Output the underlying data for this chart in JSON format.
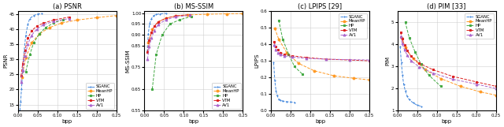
{
  "title_a": "(a) PSNR",
  "title_b": "(b) MS-SSIM",
  "title_c": "(c) LPIPS [29]",
  "title_d": "(d) PIM [33]",
  "xlabel": "bpp",
  "ylabel_a": "PSNR",
  "ylabel_b": "MS-SSIM",
  "ylabel_c": "LPIPS",
  "ylabel_d": "PIM",
  "legend_entries": [
    "SGANC",
    "MeanHP",
    "HP",
    "VTM",
    "AV1"
  ],
  "colors": {
    "SGANC": "#4488dd",
    "MeanHP": "#ff9922",
    "HP": "#44aa44",
    "VTM": "#dd2222",
    "AV1": "#aa66cc"
  },
  "psnr": {
    "SGANC": {
      "bpp": [
        0.005,
        0.007,
        0.009,
        0.012,
        0.016,
        0.02,
        0.025,
        0.03,
        0.04,
        0.05,
        0.06
      ],
      "val": [
        13.0,
        16.0,
        20.0,
        26.0,
        33.0,
        38.0,
        41.5,
        43.5,
        44.5,
        45.0,
        45.2
      ]
    },
    "MeanHP": {
      "bpp": [
        0.01,
        0.02,
        0.035,
        0.055,
        0.08,
        0.11,
        0.15,
        0.2,
        0.25
      ],
      "val": [
        24.0,
        30.5,
        35.5,
        38.5,
        40.5,
        42.0,
        43.0,
        43.8,
        44.5
      ]
    },
    "HP": {
      "bpp": [
        0.02,
        0.03,
        0.04,
        0.055,
        0.07,
        0.09,
        0.115
      ],
      "val": [
        26.0,
        31.5,
        35.5,
        38.5,
        40.5,
        42.0,
        43.2
      ]
    },
    "VTM": {
      "bpp": [
        0.008,
        0.012,
        0.018,
        0.025,
        0.035,
        0.048,
        0.065,
        0.09,
        0.13
      ],
      "val": [
        24.5,
        28.5,
        33.0,
        37.0,
        39.5,
        41.0,
        42.0,
        43.0,
        44.0
      ]
    },
    "AV1": {
      "bpp": [
        0.008,
        0.012,
        0.018,
        0.025,
        0.035,
        0.048,
        0.065,
        0.09,
        0.13
      ],
      "val": [
        22.5,
        26.5,
        31.0,
        35.0,
        38.0,
        40.0,
        41.5,
        42.5,
        43.5
      ]
    }
  },
  "msssim": {
    "SGANC": {
      "bpp": [
        0.007,
        0.01,
        0.013,
        0.018,
        0.023,
        0.03,
        0.04,
        0.055
      ],
      "val": [
        0.82,
        0.905,
        0.95,
        0.975,
        0.988,
        0.994,
        0.997,
        0.999
      ]
    },
    "MeanHP": {
      "bpp": [
        0.01,
        0.02,
        0.035,
        0.055,
        0.08,
        0.11,
        0.16,
        0.21,
        0.25
      ],
      "val": [
        0.865,
        0.925,
        0.96,
        0.977,
        0.987,
        0.992,
        0.995,
        0.997,
        0.998
      ]
    },
    "HP": {
      "bpp": [
        0.02,
        0.03,
        0.045,
        0.065,
        0.09,
        0.12
      ],
      "val": [
        0.65,
        0.81,
        0.9,
        0.95,
        0.97,
        0.985
      ]
    },
    "VTM": {
      "bpp": [
        0.008,
        0.012,
        0.018,
        0.025,
        0.035,
        0.055,
        0.08,
        0.115
      ],
      "val": [
        0.82,
        0.875,
        0.91,
        0.94,
        0.96,
        0.977,
        0.988,
        0.993
      ]
    },
    "AV1": {
      "bpp": [
        0.008,
        0.012,
        0.018,
        0.025,
        0.035,
        0.055,
        0.08,
        0.115
      ],
      "val": [
        0.788,
        0.845,
        0.885,
        0.92,
        0.948,
        0.97,
        0.983,
        0.99
      ]
    }
  },
  "lpips": {
    "SGANC": {
      "bpp": [
        0.007,
        0.01,
        0.013,
        0.016,
        0.02,
        0.025,
        0.03,
        0.04,
        0.05,
        0.06
      ],
      "val": [
        0.29,
        0.18,
        0.12,
        0.09,
        0.07,
        0.062,
        0.058,
        0.054,
        0.052,
        0.05
      ]
    },
    "MeanHP": {
      "bpp": [
        0.01,
        0.02,
        0.04,
        0.07,
        0.11,
        0.16,
        0.21,
        0.25
      ],
      "val": [
        0.495,
        0.43,
        0.35,
        0.285,
        0.24,
        0.21,
        0.195,
        0.185
      ]
    },
    "HP": {
      "bpp": [
        0.02,
        0.03,
        0.045,
        0.06,
        0.08
      ],
      "val": [
        0.545,
        0.43,
        0.34,
        0.265,
        0.22
      ]
    },
    "VTM": {
      "bpp": [
        0.008,
        0.012,
        0.018,
        0.025,
        0.035,
        0.055,
        0.09,
        0.14,
        0.2,
        0.25
      ],
      "val": [
        0.415,
        0.385,
        0.365,
        0.35,
        0.34,
        0.33,
        0.32,
        0.31,
        0.305,
        0.3
      ]
    },
    "AV1": {
      "bpp": [
        0.008,
        0.012,
        0.018,
        0.025,
        0.035,
        0.055,
        0.09,
        0.14,
        0.2,
        0.25
      ],
      "val": [
        0.395,
        0.368,
        0.35,
        0.338,
        0.33,
        0.322,
        0.315,
        0.31,
        0.307,
        0.305
      ]
    }
  },
  "pim": {
    "SGANC": {
      "bpp": [
        0.007,
        0.01,
        0.013,
        0.016,
        0.02,
        0.025,
        0.03,
        0.04,
        0.05,
        0.06
      ],
      "val": [
        3.9,
        3.2,
        2.6,
        2.2,
        1.9,
        1.65,
        1.5,
        1.35,
        1.25,
        1.2
      ]
    },
    "MeanHP": {
      "bpp": [
        0.01,
        0.02,
        0.04,
        0.07,
        0.11,
        0.16,
        0.21,
        0.25
      ],
      "val": [
        4.3,
        3.85,
        3.35,
        2.85,
        2.45,
        2.1,
        1.85,
        1.7
      ]
    },
    "HP": {
      "bpp": [
        0.02,
        0.03,
        0.045,
        0.06,
        0.08,
        0.11
      ],
      "val": [
        5.0,
        4.3,
        3.65,
        3.1,
        2.6,
        2.1
      ]
    },
    "VTM": {
      "bpp": [
        0.008,
        0.012,
        0.018,
        0.025,
        0.035,
        0.055,
        0.09,
        0.14,
        0.2,
        0.25
      ],
      "val": [
        4.55,
        4.25,
        3.95,
        3.7,
        3.45,
        3.15,
        2.85,
        2.55,
        2.3,
        2.1
      ]
    },
    "AV1": {
      "bpp": [
        0.008,
        0.012,
        0.018,
        0.025,
        0.035,
        0.055,
        0.09,
        0.14,
        0.2,
        0.25
      ],
      "val": [
        4.35,
        4.05,
        3.75,
        3.5,
        3.25,
        2.98,
        2.7,
        2.42,
        2.2,
        2.0
      ]
    }
  },
  "marker": {
    "SGANC": "+",
    "MeanHP": "o",
    "HP": "s",
    "VTM": "s",
    "AV1": "^"
  },
  "xlim": [
    0.0,
    0.25
  ],
  "xticks": [
    0.0,
    0.05,
    0.1,
    0.15,
    0.2,
    0.25
  ],
  "psnr_ylim": [
    13,
    46
  ],
  "psnr_yticks": [
    15,
    20,
    25,
    30,
    35,
    40,
    45
  ],
  "msssim_ylim": [
    0.55,
    1.01
  ],
  "msssim_yticks": [
    0.55,
    0.65,
    0.75,
    0.85,
    0.9,
    0.95,
    1.0
  ],
  "lpips_ylim": [
    0.0,
    0.6
  ],
  "lpips_yticks": [
    0.0,
    0.1,
    0.2,
    0.3,
    0.4,
    0.5,
    0.6
  ],
  "pim_ylim": [
    1.0,
    5.5
  ],
  "pim_yticks": [
    1.0,
    2.0,
    3.0,
    4.0,
    5.0
  ]
}
